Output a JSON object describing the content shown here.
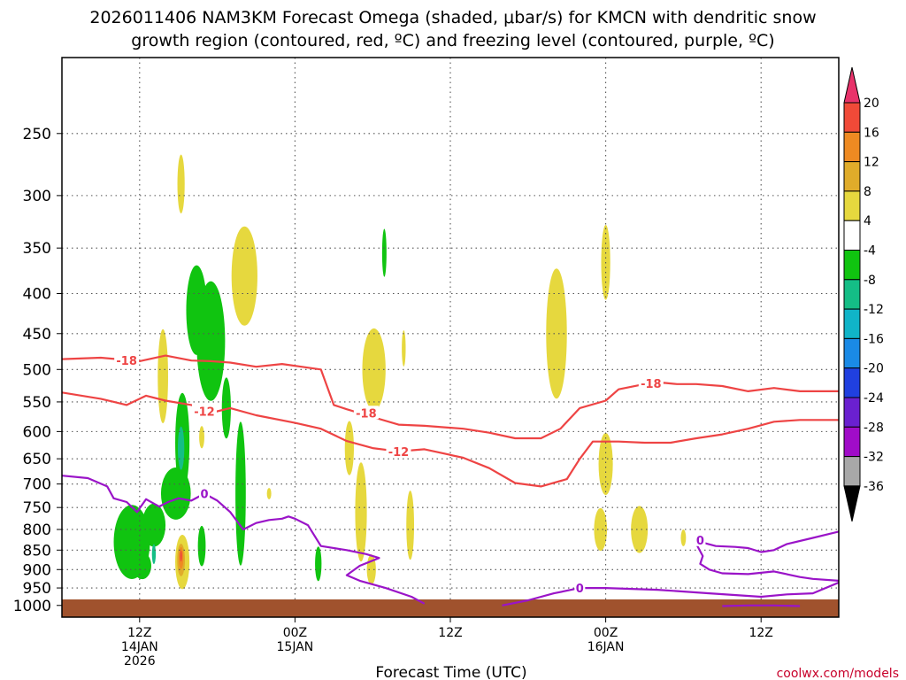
{
  "chart_data": {
    "type": "heatmap",
    "title_line1": "2026011406 NAM3KM Forecast Omega (shaded, μbar/s) for KMCN with dendritic snow",
    "title_line2": "growth region (contoured, red, ºC) and freezing level (contoured, purple, ºC)",
    "xlabel": "Forecast Time (UTC)",
    "credit": "coolwx.com/models",
    "y_axis": {
      "scale": "log",
      "inverted": true,
      "ylim": [
        1035,
        200
      ],
      "ticks": [
        250,
        300,
        350,
        400,
        450,
        500,
        550,
        600,
        650,
        700,
        750,
        800,
        850,
        900,
        950,
        1000
      ]
    },
    "x_axis": {
      "unit": "hours from 14JAN 06Z",
      "xlim": [
        0,
        60
      ],
      "ticks": [
        {
          "x": 6,
          "label": "12Z",
          "sub1": "14JAN",
          "sub2": "2026"
        },
        {
          "x": 18,
          "label": "00Z",
          "sub1": "15JAN",
          "sub2": ""
        },
        {
          "x": 30,
          "label": "12Z",
          "sub1": "",
          "sub2": ""
        },
        {
          "x": 42,
          "label": "00Z",
          "sub1": "16JAN",
          "sub2": ""
        },
        {
          "x": 54,
          "label": "12Z",
          "sub1": "",
          "sub2": ""
        }
      ],
      "grid": true
    },
    "colorbar": {
      "labels": [
        "20",
        "16",
        "12",
        "8",
        "4",
        "-4",
        "-8",
        "-12",
        "-16",
        "-20",
        "-24",
        "-28",
        "-32",
        "-36"
      ],
      "colors": [
        "#e8326a",
        "#f04a38",
        "#ee8a22",
        "#e0ac2a",
        "#e6d83e",
        "#ffffff",
        "#10c410",
        "#14be86",
        "#10b4c8",
        "#1a8ae6",
        "#2040e0",
        "#6a20d0",
        "#a00cc8",
        "#a8a8a8",
        "#000000"
      ]
    },
    "shading": {
      "color_map": {
        "4": "#e6d83e",
        "8": "#e0ac2a",
        "12": "#ee8a22",
        "16": "#f04a38",
        "-4": "#10c410",
        "-8": "#14be86"
      },
      "blobs": [
        {
          "c": "4",
          "x": 9.2,
          "p": 290,
          "dx": 0.28,
          "dp": 25
        },
        {
          "c": "-4",
          "x": 11.5,
          "p": 460,
          "dx": 1.1,
          "dp": 80
        },
        {
          "c": "-4",
          "x": 10.4,
          "p": 420,
          "dx": 0.8,
          "dp": 55
        },
        {
          "c": "-4",
          "x": 12.7,
          "p": 560,
          "dx": 0.35,
          "dp": 50
        },
        {
          "c": "-4",
          "x": 9.3,
          "p": 620,
          "dx": 0.55,
          "dp": 90
        },
        {
          "c": "-4",
          "x": 8.8,
          "p": 720,
          "dx": 1.15,
          "dp": 55
        },
        {
          "c": "-4",
          "x": 5.4,
          "p": 830,
          "dx": 1.4,
          "dp": 90
        },
        {
          "c": "-4",
          "x": 7.1,
          "p": 790,
          "dx": 0.9,
          "dp": 50
        },
        {
          "c": "-4",
          "x": 6.2,
          "p": 890,
          "dx": 0.7,
          "dp": 35
        },
        {
          "c": "-4",
          "x": 10.8,
          "p": 840,
          "dx": 0.3,
          "dp": 50
        },
        {
          "c": "-4",
          "x": 13.8,
          "p": 720,
          "dx": 0.4,
          "dp": 150
        },
        {
          "c": "-4",
          "x": 19.8,
          "p": 885,
          "dx": 0.25,
          "dp": 45
        },
        {
          "c": "-4",
          "x": 24.9,
          "p": 355,
          "dx": 0.17,
          "dp": 25
        },
        {
          "c": "-8",
          "x": 9.2,
          "p": 630,
          "dx": 0.25,
          "dp": 40
        },
        {
          "c": "-8",
          "x": 7.1,
          "p": 860,
          "dx": 0.15,
          "dp": 25
        },
        {
          "c": "4",
          "x": 14.1,
          "p": 380,
          "dx": 1.0,
          "dp": 55
        },
        {
          "c": "4",
          "x": 7.8,
          "p": 510,
          "dx": 0.4,
          "dp": 70
        },
        {
          "c": "4",
          "x": 10.8,
          "p": 610,
          "dx": 0.2,
          "dp": 20
        },
        {
          "c": "4",
          "x": 9.3,
          "p": 880,
          "dx": 0.55,
          "dp": 70
        },
        {
          "c": "4",
          "x": 16.0,
          "p": 720,
          "dx": 0.17,
          "dp": 12
        },
        {
          "c": "4",
          "x": 24.1,
          "p": 500,
          "dx": 0.9,
          "dp": 60
        },
        {
          "c": "4",
          "x": 22.2,
          "p": 630,
          "dx": 0.35,
          "dp": 50
        },
        {
          "c": "4",
          "x": 23.1,
          "p": 760,
          "dx": 0.45,
          "dp": 110
        },
        {
          "c": "4",
          "x": 26.9,
          "p": 790,
          "dx": 0.3,
          "dp": 80
        },
        {
          "c": "4",
          "x": 23.9,
          "p": 900,
          "dx": 0.35,
          "dp": 40
        },
        {
          "c": "4",
          "x": 26.4,
          "p": 470,
          "dx": 0.15,
          "dp": 25
        },
        {
          "c": "4",
          "x": 38.2,
          "p": 450,
          "dx": 0.8,
          "dp": 85
        },
        {
          "c": "4",
          "x": 42.0,
          "p": 365,
          "dx": 0.35,
          "dp": 40
        },
        {
          "c": "4",
          "x": 42.0,
          "p": 660,
          "dx": 0.55,
          "dp": 60
        },
        {
          "c": "4",
          "x": 41.6,
          "p": 800,
          "dx": 0.5,
          "dp": 50
        },
        {
          "c": "4",
          "x": 44.6,
          "p": 800,
          "dx": 0.65,
          "dp": 55
        },
        {
          "c": "4",
          "x": 48.0,
          "p": 820,
          "dx": 0.2,
          "dp": 20
        },
        {
          "c": "8",
          "x": 9.2,
          "p": 875,
          "dx": 0.3,
          "dp": 42
        },
        {
          "c": "12",
          "x": 9.2,
          "p": 870,
          "dx": 0.18,
          "dp": 28
        },
        {
          "c": "16",
          "x": 9.2,
          "p": 865,
          "dx": 0.08,
          "dp": 14
        }
      ]
    },
    "contours": [
      {
        "name": "dgz-top",
        "value": "-18",
        "color": "#ee4444",
        "x": [
          0,
          3,
          6,
          8,
          10,
          11.5,
          13,
          15,
          17,
          18.5,
          20,
          21,
          22,
          24,
          26,
          28,
          31,
          33,
          35,
          37,
          38.5,
          40,
          42,
          43,
          45,
          46.5,
          47.5,
          49,
          51,
          53,
          55,
          57,
          60
        ],
        "p": [
          485,
          483,
          488,
          480,
          487,
          488,
          490,
          496,
          492,
          496,
          500,
          555,
          562,
          575,
          588,
          590,
          595,
          602,
          612,
          612,
          595,
          560,
          548,
          530,
          522,
          520,
          522,
          522,
          525,
          533,
          528,
          533,
          533
        ],
        "labels": [
          {
            "x": 5,
            "p": 487
          },
          {
            "x": 23.5,
            "p": 568
          },
          {
            "x": 45.5,
            "p": 521
          }
        ]
      },
      {
        "name": "dgz-bottom",
        "value": "-12",
        "color": "#ee4444",
        "x": [
          0,
          3,
          5,
          6.5,
          8,
          10,
          11.5,
          13,
          15,
          18,
          20,
          22,
          24,
          26,
          28,
          31,
          33,
          35,
          37,
          39,
          40,
          41,
          43,
          45,
          47,
          49,
          51,
          53,
          55,
          57,
          60
        ],
        "p": [
          535,
          545,
          555,
          540,
          548,
          555,
          568,
          560,
          572,
          585,
          595,
          617,
          630,
          636,
          632,
          648,
          668,
          698,
          705,
          690,
          650,
          618,
          618,
          620,
          620,
          612,
          605,
          595,
          583,
          580,
          580
        ],
        "labels": [
          {
            "x": 11,
            "p": 565
          },
          {
            "x": 26,
            "p": 636
          }
        ]
      },
      {
        "name": "freezing-level",
        "value": "0",
        "color": "#9a14c8",
        "x": [
          0,
          2,
          3.5,
          4,
          5,
          5.8,
          6.5,
          7.5,
          8.2,
          9,
          10,
          11,
          12,
          13,
          14,
          15,
          16,
          17,
          17.5,
          18,
          19,
          20,
          22,
          23.5,
          24.5,
          23,
          22,
          23,
          25,
          27,
          28
        ],
        "p": [
          683,
          688,
          705,
          730,
          738,
          760,
          732,
          748,
          738,
          730,
          735,
          720,
          735,
          760,
          800,
          785,
          778,
          775,
          770,
          775,
          790,
          840,
          850,
          860,
          870,
          890,
          915,
          930,
          950,
          975,
          995
        ],
        "labels": [
          {
            "x": 11,
            "p": 720
          }
        ]
      },
      {
        "name": "freezing-level-east",
        "value": "0",
        "color": "#9a14c8",
        "x": [
          34,
          36,
          38,
          40,
          42,
          46,
          50,
          54,
          56,
          58,
          60
        ],
        "p": [
          1000,
          985,
          965,
          950,
          950,
          955,
          965,
          975,
          968,
          965,
          935
        ],
        "labels": [
          {
            "x": 40,
            "p": 950
          }
        ]
      },
      {
        "name": "freezing-level-right",
        "value": "0",
        "color": "#9a14c8",
        "x": [
          60,
          58,
          56,
          55,
          54,
          53,
          52,
          50.5,
          49.3,
          49,
          49.5,
          49.3,
          50,
          51,
          53,
          55,
          57,
          58,
          60
        ],
        "p": [
          805,
          820,
          835,
          850,
          855,
          845,
          842,
          840,
          830,
          835,
          865,
          885,
          900,
          910,
          912,
          905,
          920,
          925,
          930
        ],
        "labels": [
          {
            "x": 49.3,
            "p": 825
          }
        ]
      },
      {
        "name": "freezing-level-low",
        "value": "0",
        "color": "#9a14c8",
        "x": [
          51,
          53,
          55,
          57
        ],
        "p": [
          1002,
          1000,
          1000,
          1002
        ],
        "labels": []
      }
    ]
  }
}
